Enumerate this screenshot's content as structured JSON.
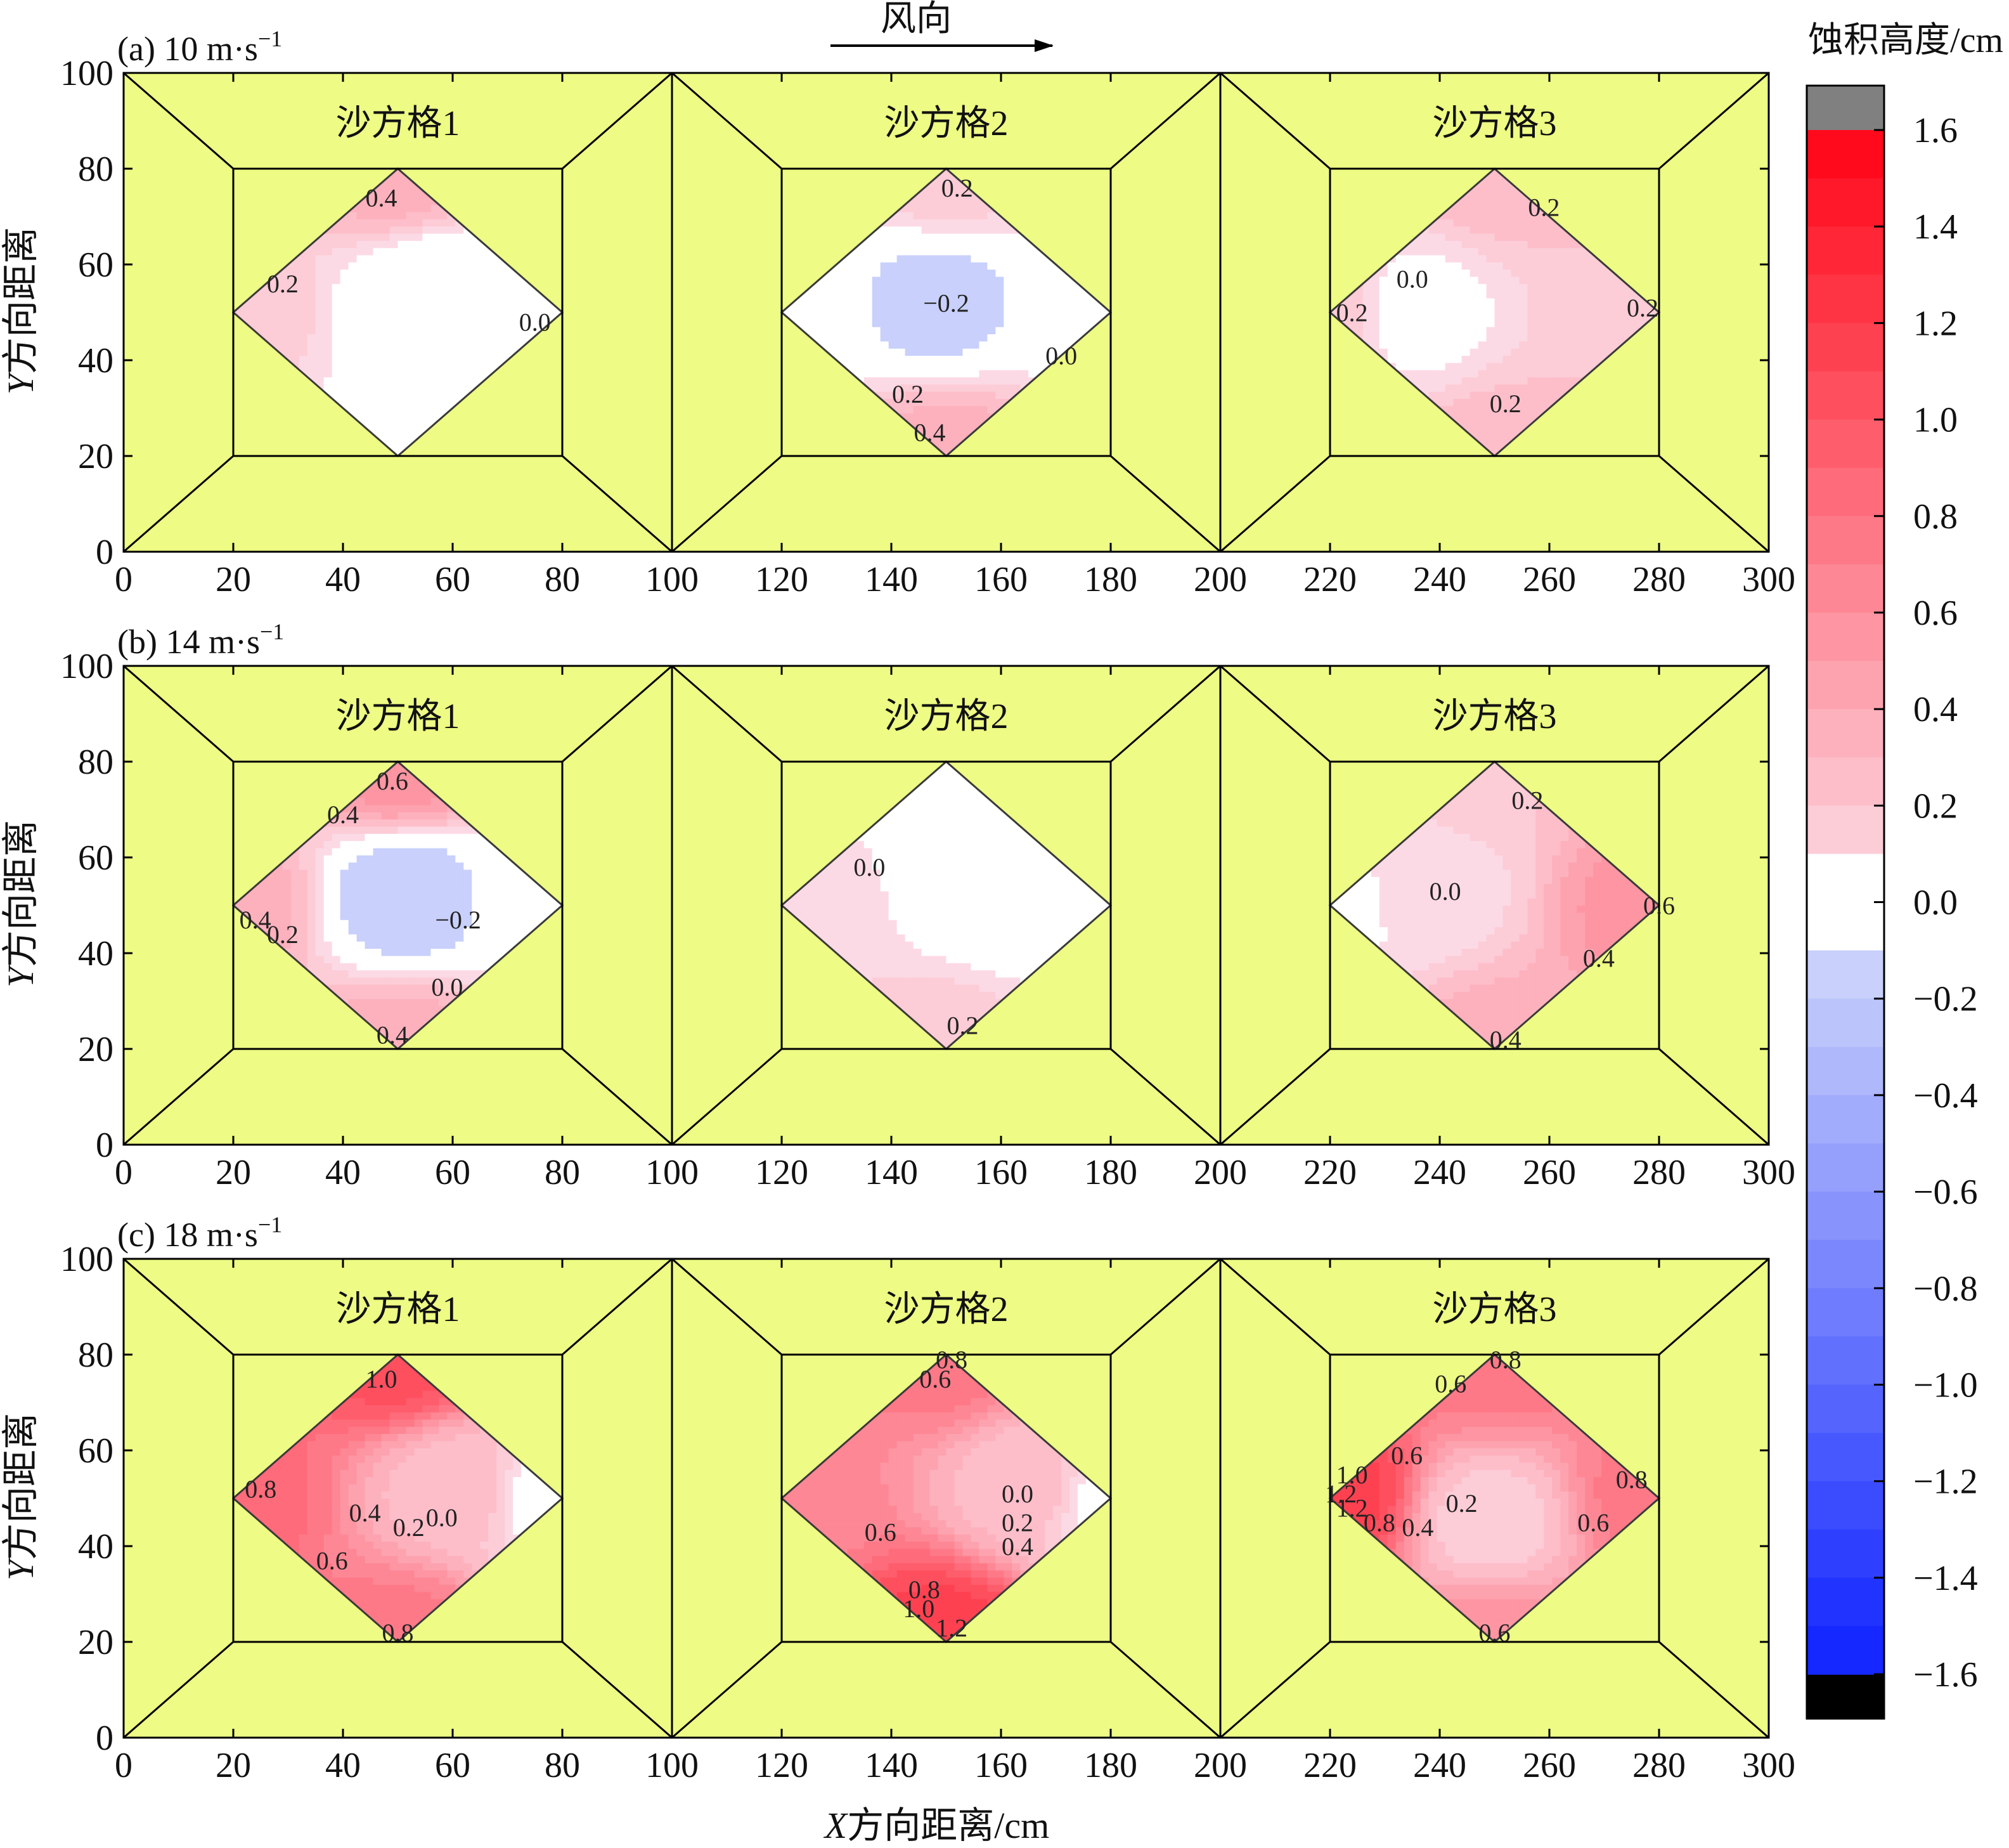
{
  "header": {
    "wind_label": "风向",
    "colorbar_title": "蚀积高度/cm"
  },
  "axes": {
    "xlabel_var": "X",
    "xlabel_rest": "方向距离/cm",
    "ylabel_var": "Y",
    "ylabel_rest": "方向距离"
  },
  "colors": {
    "background_fill": "#eefb84",
    "line": "#000000",
    "contour_line": "#3a3a3a",
    "over_max": "#808080",
    "under_min": "#000000"
  },
  "chart_data": {
    "type": "contour",
    "xlim": [
      0,
      300
    ],
    "ylim": [
      0,
      100
    ],
    "x_ticks": [
      0,
      20,
      40,
      60,
      80,
      100,
      120,
      140,
      160,
      180,
      200,
      220,
      240,
      260,
      280,
      300
    ],
    "y_ticks": [
      0,
      20,
      40,
      60,
      80,
      100
    ],
    "grid_titles": [
      "沙方格1",
      "沙方格2",
      "沙方格3"
    ],
    "colorbar": {
      "min": -1.6,
      "max": 1.6,
      "step": 0.1,
      "extend": "both",
      "tick_values": [
        1.6,
        1.4,
        1.2,
        1.0,
        0.8,
        0.6,
        0.4,
        0.2,
        0.0,
        -0.2,
        -0.4,
        -0.6,
        -0.8,
        -1.0,
        -1.2,
        -1.4,
        -1.6
      ],
      "tick_labels": [
        "1.6",
        "1.4",
        "1.2",
        "1.0",
        "0.8",
        "0.6",
        "0.4",
        "0.2",
        "0.0",
        "−0.2",
        "−0.4",
        "−0.6",
        "−0.8",
        "−1.0",
        "−1.2",
        "−1.4",
        "−1.6"
      ]
    },
    "panels": [
      {
        "label_prefix": "(a) 10 m·s",
        "label_sup": "−1",
        "wind_speed": 10,
        "grids": [
          {
            "values": {
              "top": 0.4,
              "left": 0.2,
              "right": 0.0,
              "bottom": 0.0,
              "center": -0.15
            },
            "center_pos": [
              57,
              53
            ],
            "contour_labels": [
              {
                "text": "0.4",
                "x": 47,
                "y": 74
              },
              {
                "text": "0.2",
                "x": 29,
                "y": 56
              },
              {
                "text": "0.0",
                "x": 75,
                "y": 48
              }
            ]
          },
          {
            "values": {
              "top": 0.2,
              "left": 0.0,
              "right": 0.0,
              "bottom": 0.4,
              "center": -0.2
            },
            "center_pos": [
              148,
              52
            ],
            "contour_labels": [
              {
                "text": "0.2",
                "x": 152,
                "y": 76
              },
              {
                "text": "−0.2",
                "x": 150,
                "y": 52
              },
              {
                "text": "0.0",
                "x": 171,
                "y": 41
              },
              {
                "text": "0.2",
                "x": 143,
                "y": 33
              },
              {
                "text": "0.4",
                "x": 147,
                "y": 25
              }
            ]
          },
          {
            "values": {
              "top": 0.3,
              "left": 0.2,
              "right": 0.25,
              "bottom": 0.3,
              "center": 0.0
            },
            "center_pos": [
              235,
              50
            ],
            "contour_labels": [
              {
                "text": "0.2",
                "x": 259,
                "y": 72
              },
              {
                "text": "0.0",
                "x": 235,
                "y": 57
              },
              {
                "text": "0.2",
                "x": 224,
                "y": 50
              },
              {
                "text": "0.2",
                "x": 277,
                "y": 51
              },
              {
                "text": "0.2",
                "x": 252,
                "y": 31
              }
            ]
          }
        ]
      },
      {
        "label_prefix": "(b) 14 m·s",
        "label_sup": "−1",
        "wind_speed": 14,
        "grids": [
          {
            "values": {
              "top": 0.6,
              "left": 0.4,
              "right": 0.0,
              "bottom": 0.4,
              "center": -0.25
            },
            "center_pos": [
              51,
              52
            ],
            "contour_labels": [
              {
                "text": "0.6",
                "x": 49,
                "y": 76
              },
              {
                "text": "0.4",
                "x": 40,
                "y": 69
              },
              {
                "text": "0.4",
                "x": 24,
                "y": 47
              },
              {
                "text": "0.2",
                "x": 29,
                "y": 44
              },
              {
                "text": "−0.2",
                "x": 61,
                "y": 47
              },
              {
                "text": "0.0",
                "x": 59,
                "y": 33
              },
              {
                "text": "0.4",
                "x": 49,
                "y": 23
              }
            ]
          },
          {
            "values": {
              "top": -0.05,
              "left": 0.15,
              "right": -0.05,
              "bottom": 0.2,
              "center": -0.1
            },
            "center_pos": [
              160,
              55
            ],
            "contour_labels": [
              {
                "text": "0.0",
                "x": 136,
                "y": 58
              },
              {
                "text": "0.2",
                "x": 153,
                "y": 25
              }
            ]
          },
          {
            "values": {
              "top": 0.25,
              "left": 0.0,
              "right": 0.6,
              "bottom": 0.4,
              "center": 0.1
            },
            "center_pos": [
              238,
              53
            ],
            "contour_labels": [
              {
                "text": "0.2",
                "x": 256,
                "y": 72
              },
              {
                "text": "0.0",
                "x": 241,
                "y": 53
              },
              {
                "text": "0.6",
                "x": 280,
                "y": 50
              },
              {
                "text": "0.4",
                "x": 269,
                "y": 39
              },
              {
                "text": "0.4",
                "x": 252,
                "y": 22
              }
            ]
          }
        ]
      },
      {
        "label_prefix": "(c) 18 m·s",
        "label_sup": "−1",
        "wind_speed": 18,
        "grids": [
          {
            "values": {
              "top": 1.1,
              "left": 0.9,
              "right": -0.05,
              "bottom": 0.8,
              "center": 0.3
            },
            "center_pos": [
              60,
              52
            ],
            "contour_labels": [
              {
                "text": "1.0",
                "x": 47,
                "y": 75
              },
              {
                "text": "0.8",
                "x": 25,
                "y": 52
              },
              {
                "text": "0.4",
                "x": 44,
                "y": 47
              },
              {
                "text": "0.2",
                "x": 52,
                "y": 44
              },
              {
                "text": "0.0",
                "x": 58,
                "y": 46
              },
              {
                "text": "0.6",
                "x": 38,
                "y": 37
              },
              {
                "text": "0.8",
                "x": 50,
                "y": 22
              }
            ]
          },
          {
            "values": {
              "top": 0.8,
              "left": 0.7,
              "right": 0.0,
              "bottom": 1.2,
              "center": 0.3
            },
            "center_pos": [
              165,
              53
            ],
            "contour_labels": [
              {
                "text": "0.8",
                "x": 151,
                "y": 79
              },
              {
                "text": "0.6",
                "x": 148,
                "y": 75
              },
              {
                "text": "0.0",
                "x": 163,
                "y": 51
              },
              {
                "text": "0.2",
                "x": 163,
                "y": 45
              },
              {
                "text": "0.4",
                "x": 163,
                "y": 40
              },
              {
                "text": "0.6",
                "x": 138,
                "y": 43
              },
              {
                "text": "0.8",
                "x": 146,
                "y": 31
              },
              {
                "text": "1.0",
                "x": 145,
                "y": 27
              },
              {
                "text": "1.2",
                "x": 151,
                "y": 23
              }
            ]
          },
          {
            "values": {
              "top": 0.8,
              "left": 1.2,
              "right": 0.8,
              "bottom": 0.6,
              "center": 0.2
            },
            "center_pos": [
              249,
              45
            ],
            "contour_labels": [
              {
                "text": "0.8",
                "x": 252,
                "y": 79
              },
              {
                "text": "0.6",
                "x": 242,
                "y": 74
              },
              {
                "text": "0.6",
                "x": 234,
                "y": 59
              },
              {
                "text": "1.0",
                "x": 224,
                "y": 55
              },
              {
                "text": "1.2",
                "x": 222,
                "y": 51
              },
              {
                "text": "1.2",
                "x": 224,
                "y": 48
              },
              {
                "text": "0.8",
                "x": 229,
                "y": 45
              },
              {
                "text": "0.4",
                "x": 236,
                "y": 44
              },
              {
                "text": "0.2",
                "x": 244,
                "y": 49
              },
              {
                "text": "0.8",
                "x": 275,
                "y": 54
              },
              {
                "text": "0.6",
                "x": 268,
                "y": 45
              },
              {
                "text": "0.6",
                "x": 250,
                "y": 22
              }
            ]
          }
        ]
      }
    ]
  }
}
